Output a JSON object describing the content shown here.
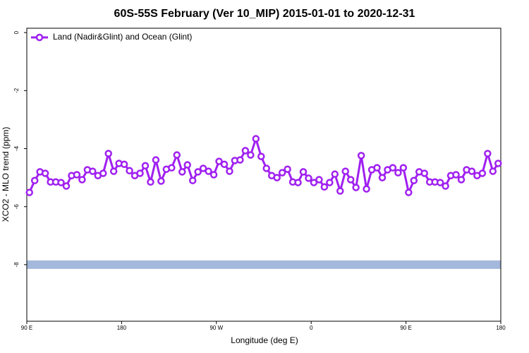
{
  "chart_data": {
    "type": "line",
    "title": "60S-55S February (Ver 10_MIP)   2015-01-01 to 2020-12-31",
    "xlabel": "Longitude (deg E)",
    "ylabel": "XCO2 - MLO trend (ppm)",
    "xlim": [
      90,
      540
    ],
    "ylim": [
      -9.95,
      0.15
    ],
    "xticks": [
      {
        "value": 90,
        "label": "90 E"
      },
      180,
      {
        "value": 270,
        "label": "90 W"
      },
      {
        "value": 360,
        "label": "0"
      },
      {
        "value": 450,
        "label": "90 E"
      },
      {
        "value": 540,
        "label": "180"
      }
    ],
    "yticks": [
      0,
      -2,
      -4,
      -6,
      -8
    ],
    "legend": "top-left",
    "reference_band": {
      "value": -8,
      "color": "#a4b8dc"
    },
    "x": [
      92.5,
      97.5,
      102.5,
      107.5,
      112.5,
      117.5,
      122.5,
      127.5,
      132.5,
      137.5,
      142.5,
      147.5,
      152.5,
      157.5,
      162.5,
      167.5,
      172.5,
      177.5,
      182.5,
      187.5,
      192.5,
      197.5,
      202.5,
      207.5,
      212.5,
      217.5,
      222.5,
      227.5,
      232.5,
      237.5,
      242.5,
      247.5,
      252.5,
      257.5,
      262.5,
      267.5,
      272.5,
      277.5,
      282.5,
      287.5,
      292.5,
      297.5,
      302.5,
      307.5,
      312.5,
      317.5,
      322.5,
      327.5,
      332.5,
      337.5,
      342.5,
      347.5,
      352.5,
      357.5,
      362.5,
      367.5,
      372.5,
      377.5,
      382.5,
      387.5,
      392.5,
      397.5,
      402.5,
      407.5,
      412.5,
      417.5,
      422.5,
      427.5,
      432.5,
      437.5,
      442.5,
      447.5,
      452.5,
      457.5,
      462.5,
      467.5,
      472.5,
      477.5,
      482.5,
      487.5,
      492.5,
      497.5,
      502.5,
      507.5,
      512.5,
      517.5,
      522.5,
      527.5,
      532.5,
      537.5
    ],
    "series": [
      {
        "name": "Land (Nadir&Glint) and Ocean (Glint)",
        "color": "#a020f0",
        "values": [
          -5.51,
          -5.1,
          -4.8,
          -4.85,
          -5.15,
          -5.15,
          -5.17,
          -5.29,
          -4.93,
          -4.9,
          -5.07,
          -4.73,
          -4.78,
          -4.93,
          -4.85,
          -4.17,
          -4.78,
          -4.51,
          -4.54,
          -4.76,
          -4.93,
          -4.85,
          -4.59,
          -5.15,
          -4.39,
          -5.12,
          -4.71,
          -4.66,
          -4.22,
          -4.8,
          -4.56,
          -5.1,
          -4.8,
          -4.68,
          -4.78,
          -4.9,
          -4.44,
          -4.54,
          -4.78,
          -4.41,
          -4.39,
          -4.07,
          -4.22,
          -3.66,
          -4.27,
          -4.68,
          -4.93,
          -5.0,
          -4.83,
          -4.71,
          -5.15,
          -5.17,
          -4.8,
          -5.02,
          -5.17,
          -5.07,
          -5.32,
          -5.17,
          -4.88,
          -5.46,
          -4.78,
          -5.07,
          -5.34,
          -4.24,
          -5.39,
          -4.73,
          -4.66,
          -5.0,
          -4.73,
          -4.66,
          -4.83,
          -4.66,
          -5.51,
          -5.1,
          -4.8,
          -4.85,
          -5.15,
          -5.15,
          -5.17,
          -5.29,
          -4.93,
          -4.9,
          -5.07,
          -4.73,
          -4.78,
          -4.93,
          -4.85,
          -4.17,
          -4.78,
          -4.51
        ]
      }
    ]
  }
}
